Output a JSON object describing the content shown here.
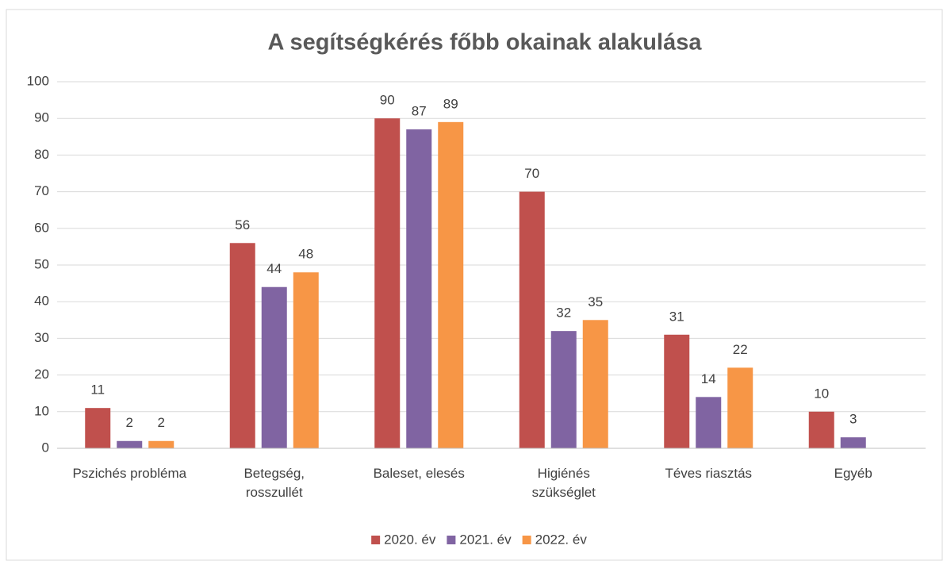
{
  "chart_data": {
    "type": "bar",
    "title": "A segítségkérés főbb okainak alakulása",
    "categories": [
      "Pszichés probléma",
      "Betegség,\nrosszullét",
      "Baleset, elesés",
      "Higiénés\nszükséglet",
      "Téves riasztás",
      "Egyéb"
    ],
    "series": [
      {
        "name": "2020. év",
        "color": "#c0504d",
        "values": [
          11,
          56,
          90,
          70,
          31,
          10
        ]
      },
      {
        "name": "2021. év",
        "color": "#8064a2",
        "values": [
          2,
          44,
          87,
          32,
          14,
          3
        ]
      },
      {
        "name": "2022. év",
        "color": "#f79646",
        "values": [
          2,
          48,
          89,
          35,
          22,
          null
        ]
      }
    ],
    "ylim": [
      0,
      100
    ],
    "yticks": [
      0,
      10,
      20,
      30,
      40,
      50,
      60,
      70,
      80,
      90,
      100
    ],
    "grid": true,
    "legend": "bottom"
  }
}
